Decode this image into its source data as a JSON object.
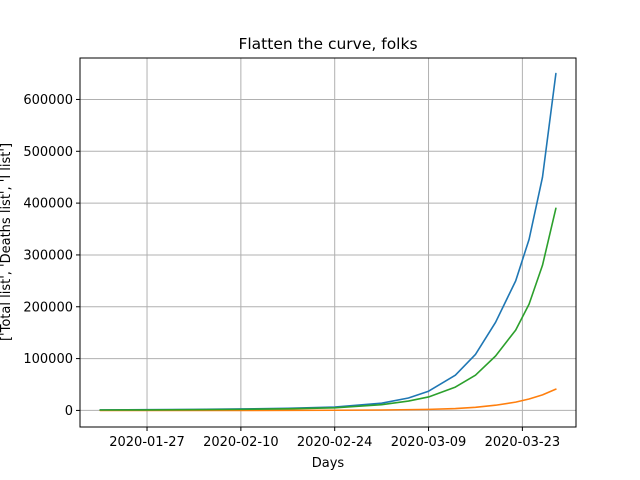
{
  "chart_data": {
    "type": "line",
    "title": "Flatten the curve, folks",
    "xlabel": "Days",
    "ylabel": "['Total list', 'Deaths list', 'I list']",
    "x_axis_type": "date",
    "x_start": "2020-01-20",
    "x_end": "2020-03-28",
    "xlim": [
      "2020-01-17",
      "2020-03-31"
    ],
    "ylim": [
      -32000,
      680000
    ],
    "x_tick_labels": [
      "2020-01-27",
      "2020-02-10",
      "2020-02-24",
      "2020-03-09",
      "2020-03-23"
    ],
    "y_ticks": [
      0,
      100000,
      200000,
      300000,
      400000,
      500000,
      600000
    ],
    "y_tick_labels": [
      "0",
      "100000",
      "200000",
      "300000",
      "400000",
      "500000",
      "600000"
    ],
    "grid": true,
    "legend": "none",
    "series": [
      {
        "color": "#1f77b4",
        "points": [
          [
            "2020-01-20",
            1000
          ],
          [
            "2020-01-27",
            1500
          ],
          [
            "2020-02-03",
            2000
          ],
          [
            "2020-02-10",
            2800
          ],
          [
            "2020-02-17",
            4000
          ],
          [
            "2020-02-24",
            6500
          ],
          [
            "2020-03-02",
            14000
          ],
          [
            "2020-03-06",
            24000
          ],
          [
            "2020-03-09",
            37000
          ],
          [
            "2020-03-13",
            68000
          ],
          [
            "2020-03-16",
            108000
          ],
          [
            "2020-03-19",
            170000
          ],
          [
            "2020-03-22",
            250000
          ],
          [
            "2020-03-24",
            330000
          ],
          [
            "2020-03-26",
            450000
          ],
          [
            "2020-03-28",
            650000
          ]
        ]
      },
      {
        "color": "#ff7f0e",
        "points": [
          [
            "2020-01-20",
            0
          ],
          [
            "2020-02-10",
            0
          ],
          [
            "2020-02-24",
            300
          ],
          [
            "2020-03-02",
            800
          ],
          [
            "2020-03-09",
            2000
          ],
          [
            "2020-03-13",
            3500
          ],
          [
            "2020-03-16",
            6000
          ],
          [
            "2020-03-19",
            10000
          ],
          [
            "2020-03-22",
            16000
          ],
          [
            "2020-03-24",
            22000
          ],
          [
            "2020-03-26",
            30000
          ],
          [
            "2020-03-28",
            41000
          ]
        ]
      },
      {
        "color": "#2ca02c",
        "points": [
          [
            "2020-01-20",
            800
          ],
          [
            "2020-01-27",
            1000
          ],
          [
            "2020-02-03",
            1500
          ],
          [
            "2020-02-10",
            2000
          ],
          [
            "2020-02-17",
            3000
          ],
          [
            "2020-02-24",
            5000
          ],
          [
            "2020-03-02",
            11000
          ],
          [
            "2020-03-06",
            18000
          ],
          [
            "2020-03-09",
            26000
          ],
          [
            "2020-03-13",
            45000
          ],
          [
            "2020-03-16",
            68000
          ],
          [
            "2020-03-19",
            105000
          ],
          [
            "2020-03-22",
            155000
          ],
          [
            "2020-03-24",
            205000
          ],
          [
            "2020-03-26",
            280000
          ],
          [
            "2020-03-28",
            390000
          ]
        ]
      }
    ]
  }
}
